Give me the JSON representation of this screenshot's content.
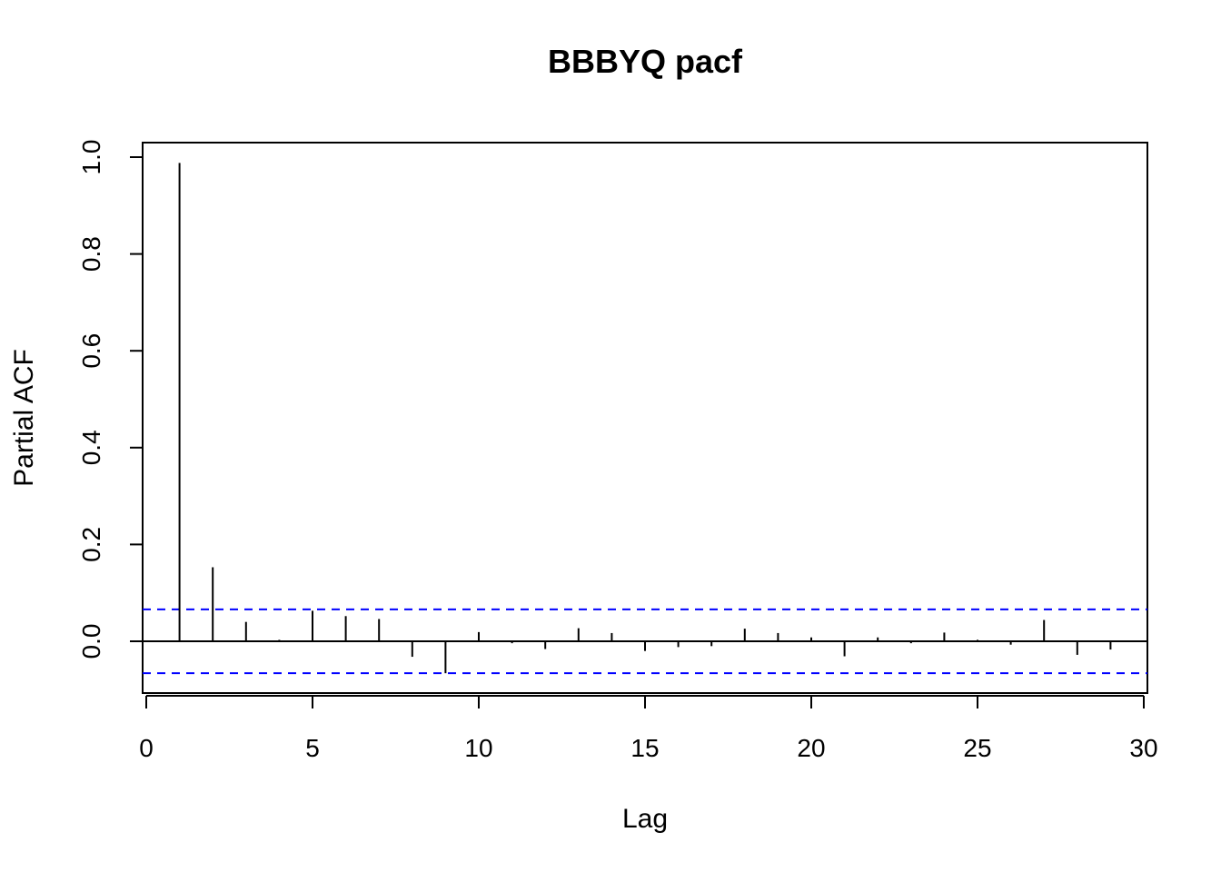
{
  "chart_data": {
    "type": "bar",
    "title": "BBBYQ pacf",
    "xlabel": "Lag",
    "ylabel": "Partial ACF",
    "xlim": [
      0,
      30
    ],
    "ylim": [
      -0.1,
      1.0
    ],
    "x_ticks": [
      0,
      5,
      10,
      15,
      20,
      25,
      30
    ],
    "x_tick_labels": [
      "0",
      "5",
      "10",
      "15",
      "20",
      "25",
      "30"
    ],
    "y_ticks": [
      0.0,
      0.2,
      0.4,
      0.6,
      0.8,
      1.0
    ],
    "y_tick_labels": [
      "0.0",
      "0.2",
      "0.4",
      "0.6",
      "0.8",
      "1.0"
    ],
    "lags": [
      1,
      2,
      3,
      4,
      5,
      6,
      7,
      8,
      9,
      10,
      11,
      12,
      13,
      14,
      15,
      16,
      17,
      18,
      19,
      20,
      21,
      22,
      23,
      24,
      25,
      26,
      27,
      28,
      29
    ],
    "values": [
      0.988,
      0.153,
      0.04,
      0.003,
      0.063,
      0.052,
      0.046,
      -0.032,
      -0.066,
      0.019,
      -0.004,
      -0.016,
      0.027,
      0.017,
      -0.02,
      -0.012,
      -0.01,
      0.026,
      0.017,
      0.008,
      -0.031,
      0.008,
      -0.004,
      0.018,
      0.003,
      -0.007,
      0.044,
      -0.028,
      -0.017
    ],
    "confidence_bounds": [
      0.066,
      -0.066
    ],
    "colors": {
      "bars": "#000000",
      "confidence": "#0000ff",
      "frame": "#000000"
    },
    "grid": false
  }
}
